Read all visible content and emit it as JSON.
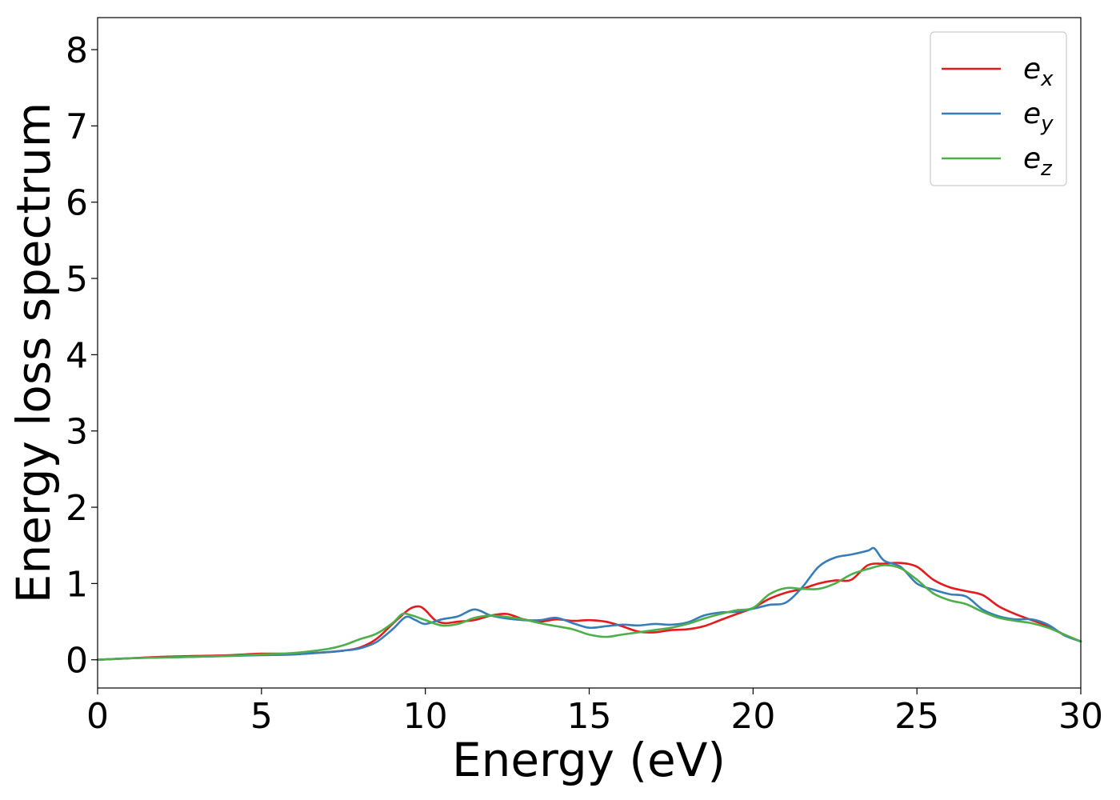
{
  "chart_data": {
    "type": "line",
    "title": "",
    "xlabel": "Energy (eV)",
    "ylabel": "Energy loss spectrum",
    "xlim": [
      0,
      30
    ],
    "ylim": [
      -0.37,
      8.42
    ],
    "xticks": [
      0,
      5,
      10,
      15,
      20,
      25,
      30
    ],
    "yticks": [
      0,
      1,
      2,
      3,
      4,
      5,
      6,
      7,
      8
    ],
    "grid": false,
    "legend_position": "top-right",
    "series": [
      {
        "name": "e_x",
        "label_base": "e",
        "label_sub": "x",
        "color": "#e41a1c",
        "x": [
          0,
          1,
          2,
          3,
          4,
          5,
          6,
          7,
          7.5,
          8,
          8.5,
          9,
          9.5,
          9.8,
          10,
          10.3,
          10.6,
          11,
          11.5,
          12,
          12.5,
          13,
          13.5,
          14,
          14.5,
          15,
          15.5,
          16,
          16.5,
          17,
          17.5,
          18,
          18.5,
          19,
          19.5,
          20,
          20.5,
          21,
          21.5,
          22,
          22.5,
          23,
          23.5,
          24,
          24.5,
          25,
          25.5,
          26,
          26.5,
          27,
          27.5,
          28,
          28.5,
          29,
          29.5,
          30
        ],
        "y": [
          0.0,
          0.02,
          0.04,
          0.05,
          0.06,
          0.08,
          0.08,
          0.1,
          0.12,
          0.16,
          0.27,
          0.47,
          0.66,
          0.7,
          0.65,
          0.52,
          0.48,
          0.5,
          0.52,
          0.58,
          0.6,
          0.53,
          0.5,
          0.53,
          0.51,
          0.52,
          0.5,
          0.44,
          0.37,
          0.36,
          0.39,
          0.4,
          0.44,
          0.52,
          0.6,
          0.68,
          0.8,
          0.88,
          0.93,
          1.0,
          1.04,
          1.05,
          1.24,
          1.26,
          1.27,
          1.22,
          1.05,
          0.95,
          0.9,
          0.85,
          0.7,
          0.6,
          0.52,
          0.44,
          0.33,
          0.24
        ]
      },
      {
        "name": "e_y",
        "label_base": "e",
        "label_sub": "y",
        "color": "#377eb8",
        "x": [
          0,
          1,
          2,
          3,
          4,
          5,
          6,
          7,
          7.5,
          8,
          8.5,
          9,
          9.4,
          9.7,
          10,
          10.5,
          11,
          11.5,
          12,
          12.5,
          13,
          13.5,
          14,
          14.5,
          15,
          15.5,
          16,
          16.5,
          17,
          17.5,
          18,
          18.5,
          19,
          19.5,
          20,
          20.5,
          21,
          21.5,
          22,
          22.5,
          23,
          23.5,
          23.7,
          24,
          24.5,
          25,
          25.5,
          26,
          26.5,
          27,
          27.5,
          28,
          28.5,
          29,
          29.5,
          30
        ],
        "y": [
          0.0,
          0.02,
          0.03,
          0.04,
          0.05,
          0.06,
          0.07,
          0.1,
          0.12,
          0.15,
          0.23,
          0.4,
          0.56,
          0.52,
          0.47,
          0.53,
          0.57,
          0.66,
          0.58,
          0.54,
          0.52,
          0.52,
          0.55,
          0.48,
          0.42,
          0.44,
          0.46,
          0.45,
          0.47,
          0.46,
          0.49,
          0.58,
          0.62,
          0.63,
          0.67,
          0.72,
          0.75,
          0.95,
          1.22,
          1.34,
          1.38,
          1.43,
          1.46,
          1.3,
          1.22,
          1.0,
          0.92,
          0.86,
          0.83,
          0.66,
          0.57,
          0.53,
          0.53,
          0.46,
          0.32,
          0.24
        ]
      },
      {
        "name": "e_z",
        "label_base": "e",
        "label_sub": "z",
        "color": "#4daf4a",
        "x": [
          0,
          1,
          2,
          3,
          4,
          5,
          6,
          7,
          7.5,
          8,
          8.5,
          9,
          9.3,
          9.6,
          10,
          10.5,
          11,
          11.5,
          12,
          12.5,
          13,
          13.5,
          14,
          14.5,
          15,
          15.5,
          16,
          16.5,
          17,
          17.5,
          18,
          18.5,
          19,
          19.5,
          20,
          20.5,
          21,
          21.5,
          22,
          22.5,
          23,
          23.5,
          24,
          24.5,
          25,
          25.5,
          26,
          26.5,
          27,
          27.5,
          28,
          28.5,
          29,
          29.5,
          30
        ],
        "y": [
          0.0,
          0.02,
          0.03,
          0.04,
          0.05,
          0.07,
          0.09,
          0.14,
          0.19,
          0.27,
          0.34,
          0.48,
          0.6,
          0.58,
          0.52,
          0.45,
          0.47,
          0.55,
          0.58,
          0.56,
          0.53,
          0.48,
          0.44,
          0.4,
          0.33,
          0.3,
          0.33,
          0.36,
          0.39,
          0.42,
          0.47,
          0.54,
          0.6,
          0.65,
          0.68,
          0.86,
          0.94,
          0.93,
          0.93,
          1.0,
          1.12,
          1.19,
          1.24,
          1.2,
          1.05,
          0.87,
          0.78,
          0.73,
          0.63,
          0.55,
          0.51,
          0.48,
          0.42,
          0.33,
          0.24
        ]
      }
    ]
  }
}
